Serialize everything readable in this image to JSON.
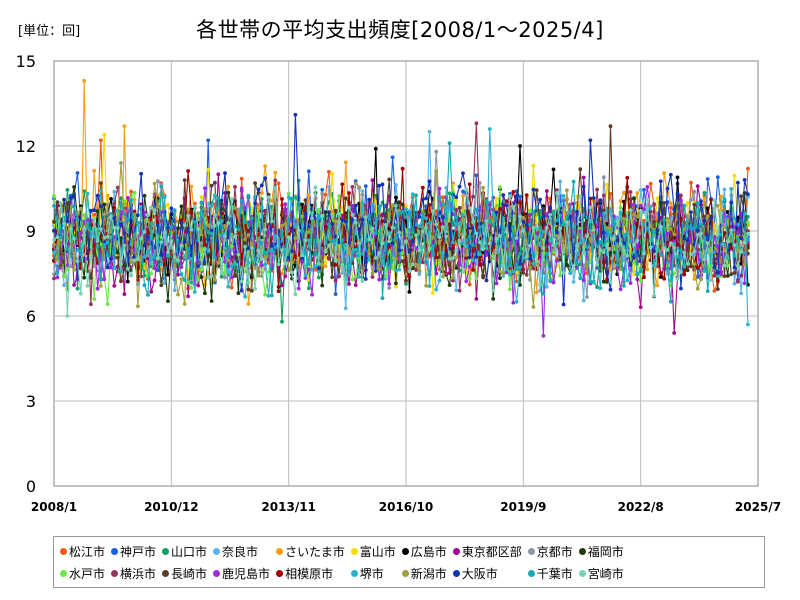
{
  "unit_label": "[単位：回]",
  "chart_data": {
    "type": "line",
    "title": "各世帯の平均支出頻度[2008/1～2025/4]",
    "xlabel": "",
    "ylabel": "",
    "ylim": [
      0,
      15
    ],
    "yticks": [
      0,
      3,
      6,
      9,
      12,
      15
    ],
    "xlim": [
      "2008-01",
      "2025-07"
    ],
    "xticks": [
      "2008/1",
      "2010/12",
      "2013/11",
      "2016/10",
      "2019/9",
      "2022/8",
      "2025/7"
    ],
    "grid": true,
    "legend_position": "bottom",
    "x_start": "2008-01",
    "x_end": "2025-04",
    "series": [
      {
        "name": "松江市",
        "color": "#f05a14",
        "center": 8.9,
        "amp": 1.0,
        "last": 11.2,
        "peaks": [
          [
            14,
            12.2
          ]
        ]
      },
      {
        "name": "神戸市",
        "color": "#1a5fe0",
        "center": 9.1,
        "amp": 1.0,
        "last": 8.8,
        "peaks": [
          [
            46,
            12.2
          ],
          [
            198,
            10.9
          ]
        ]
      },
      {
        "name": "山口市",
        "color": "#14a064",
        "center": 8.8,
        "amp": 1.0,
        "last": 9.5,
        "peaks": [
          [
            68,
            5.8
          ]
        ]
      },
      {
        "name": "奈良市",
        "color": "#5ab4e6",
        "center": 8.7,
        "amp": 1.0,
        "last": 10.2,
        "peaks": [
          [
            112,
            12.5
          ]
        ]
      },
      {
        "name": "さいたま市",
        "color": "#f5a014",
        "center": 9.0,
        "amp": 1.1,
        "last": 9.2,
        "peaks": [
          [
            9,
            14.3
          ],
          [
            21,
            12.7
          ]
        ]
      },
      {
        "name": "富山市",
        "color": "#f5dc00",
        "center": 8.9,
        "amp": 1.0,
        "last": 8.6,
        "peaks": [
          [
            15,
            12.4
          ]
        ]
      },
      {
        "name": "広島市",
        "color": "#000000",
        "center": 8.9,
        "amp": 1.0,
        "last": 7.1,
        "peaks": [
          [
            96,
            11.9
          ],
          [
            139,
            12.0
          ]
        ]
      },
      {
        "name": "東京都区部",
        "color": "#a00a8c",
        "center": 8.7,
        "amp": 1.0,
        "last": 8.6,
        "peaks": [
          [
            185,
            5.4
          ]
        ]
      },
      {
        "name": "京都市",
        "color": "#8a96a8",
        "center": 8.8,
        "amp": 1.0,
        "last": 9.0,
        "peaks": [
          [
            114,
            11.8
          ]
        ]
      },
      {
        "name": "福岡市",
        "color": "#1e3c0a",
        "center": 8.6,
        "amp": 1.0,
        "last": 8.4,
        "peaks": [
          [
            60,
            10.2
          ]
        ]
      },
      {
        "name": "水戸市",
        "color": "#6ee646",
        "center": 8.7,
        "amp": 1.0,
        "last": 9.3,
        "peaks": [
          [
            12,
            6.6
          ]
        ]
      },
      {
        "name": "横浜市",
        "color": "#96325a",
        "center": 8.7,
        "amp": 1.0,
        "last": 9.0,
        "peaks": [
          [
            126,
            12.8
          ]
        ]
      },
      {
        "name": "長崎市",
        "color": "#5a3c28",
        "center": 8.7,
        "amp": 1.0,
        "last": 8.2,
        "peaks": [
          [
            166,
            12.7
          ]
        ]
      },
      {
        "name": "鹿児島市",
        "color": "#a028dc",
        "center": 8.6,
        "amp": 1.0,
        "last": 8.6,
        "peaks": [
          [
            146,
            5.3
          ]
        ]
      },
      {
        "name": "相模原市",
        "color": "#a00000",
        "center": 8.8,
        "amp": 1.0,
        "last": 8.5,
        "peaks": [
          [
            104,
            11.2
          ]
        ]
      },
      {
        "name": "堺市",
        "color": "#28b4c8",
        "center": 8.6,
        "amp": 1.0,
        "last": 5.7,
        "peaks": [
          [
            130,
            12.6
          ]
        ]
      },
      {
        "name": "新潟市",
        "color": "#a0a03c",
        "center": 8.8,
        "amp": 1.0,
        "last": 8.9,
        "peaks": [
          [
            20,
            11.4
          ]
        ]
      },
      {
        "name": "大阪市",
        "color": "#1432b4",
        "center": 9.0,
        "amp": 1.1,
        "last": 10.3,
        "peaks": [
          [
            72,
            13.1
          ],
          [
            160,
            12.2
          ]
        ]
      },
      {
        "name": "千葉市",
        "color": "#14aab4",
        "center": 8.8,
        "amp": 1.0,
        "last": 8.7,
        "peaks": [
          [
            118,
            12.1
          ]
        ]
      },
      {
        "name": "宮崎市",
        "color": "#78d2b4",
        "center": 8.6,
        "amp": 1.0,
        "last": 8.9,
        "peaks": [
          [
            4,
            6.0
          ]
        ]
      }
    ]
  }
}
